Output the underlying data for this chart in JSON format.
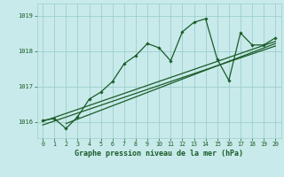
{
  "title": "",
  "xlabel": "Graphe pression niveau de la mer (hPa)",
  "ylabel": "",
  "bg_color": "#c8eaea",
  "grid_color": "#9ecece",
  "line_color": "#1a5c28",
  "trend_color": "#1a5c28",
  "ylim": [
    1015.55,
    1019.35
  ],
  "xlim": [
    -0.5,
    20.5
  ],
  "xticks": [
    0,
    1,
    2,
    3,
    4,
    5,
    6,
    7,
    8,
    9,
    10,
    11,
    12,
    13,
    14,
    15,
    16,
    17,
    18,
    19,
    20
  ],
  "yticks": [
    1016,
    1017,
    1018,
    1019
  ],
  "data_x": [
    0,
    1,
    2,
    3,
    4,
    5,
    6,
    7,
    8,
    9,
    10,
    11,
    12,
    13,
    14,
    15,
    16,
    17,
    18,
    19,
    20
  ],
  "data_y": [
    1016.05,
    1016.1,
    1015.82,
    1016.15,
    1016.65,
    1016.85,
    1017.15,
    1017.65,
    1017.88,
    1018.22,
    1018.1,
    1017.73,
    1018.55,
    1018.82,
    1018.92,
    1017.78,
    1017.18,
    1018.52,
    1018.18,
    1018.18,
    1018.38
  ],
  "trend1_x": [
    0,
    20
  ],
  "trend1_y": [
    1015.92,
    1018.15
  ],
  "trend2_x": [
    2,
    20
  ],
  "trend2_y": [
    1015.96,
    1018.22
  ],
  "trend3_x": [
    0,
    20
  ],
  "trend3_y": [
    1016.02,
    1018.28
  ]
}
